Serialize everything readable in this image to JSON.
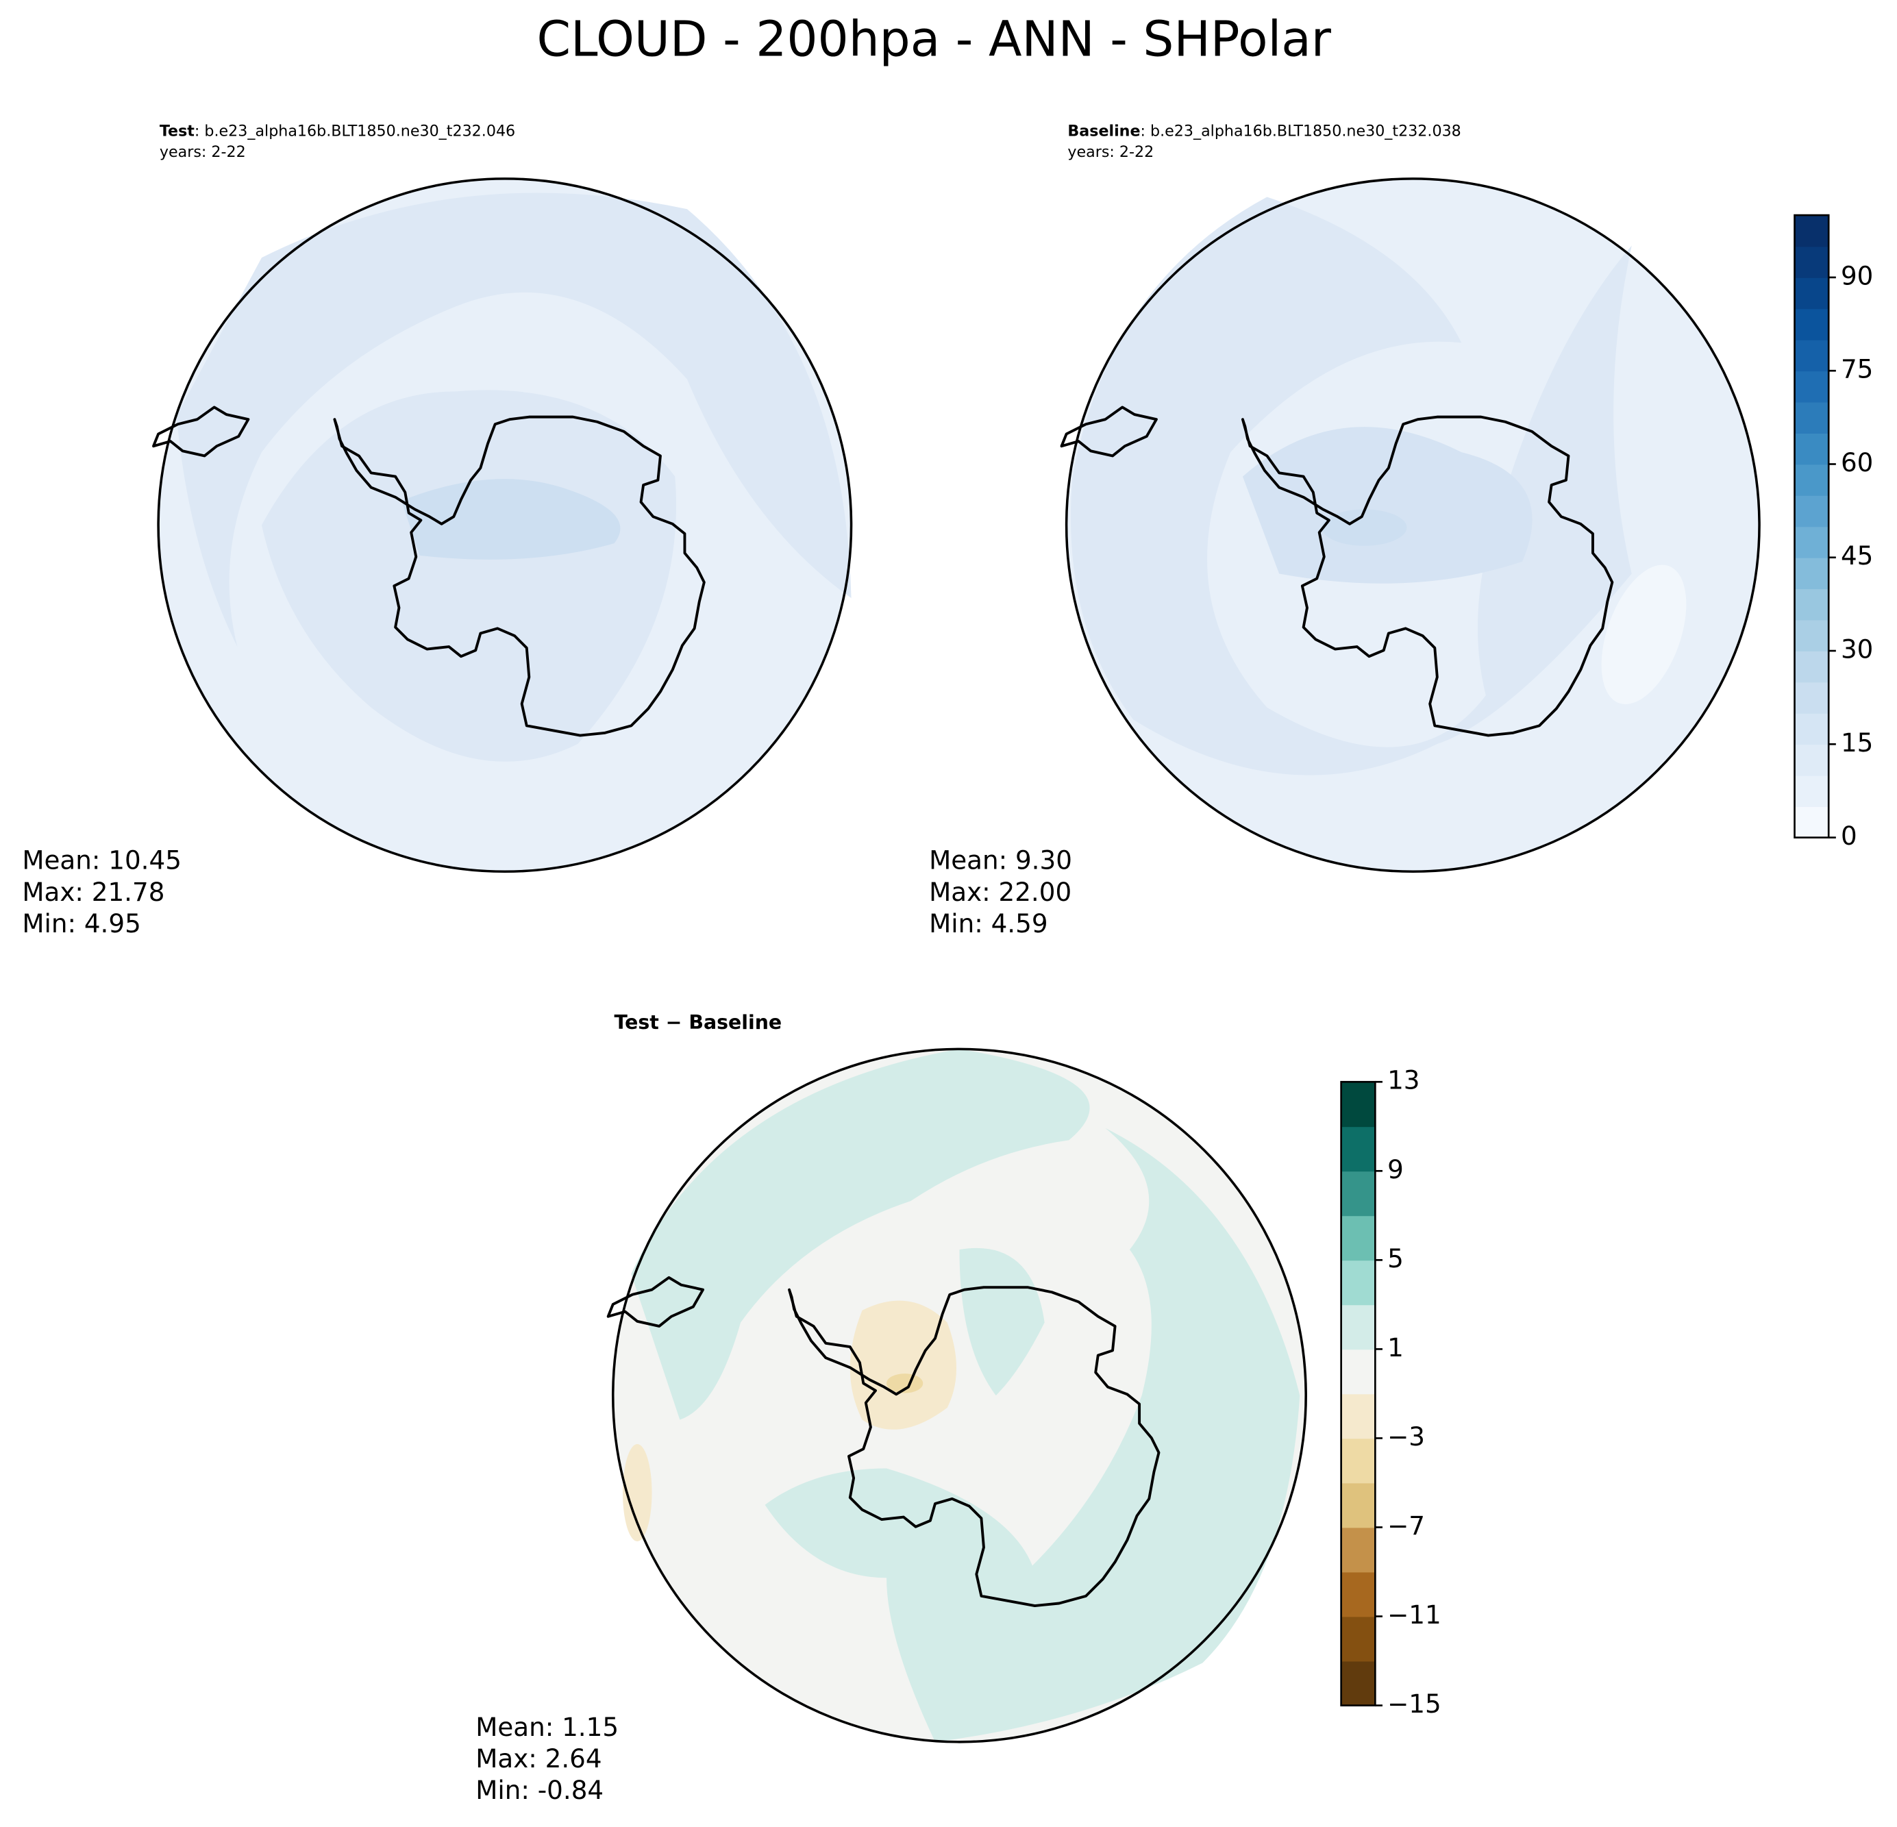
{
  "title": "CLOUD - 200hpa - ANN - SHPolar",
  "panels": [
    {
      "label": "Test",
      "case": ": b.e23_alpha16b.BLT1850.ne30_t232.046",
      "years": "years: 2-22",
      "stats": [
        "Mean: 10.45",
        "Max: 21.78",
        "Min:  4.95"
      ]
    },
    {
      "label": "Baseline",
      "case": ": b.e23_alpha16b.BLT1850.ne30_t232.038",
      "years": "years: 2-22",
      "stats": [
        "Mean:  9.30",
        "Max: 22.00",
        "Min:  4.59"
      ]
    },
    {
      "title": "Test − Baseline",
      "stats": [
        "Mean:  1.15",
        "Max:  2.64",
        "Min: -0.84"
      ]
    }
  ],
  "colorbars": [
    {
      "lim": [
        0,
        100
      ],
      "ticks": [
        0,
        15,
        30,
        45,
        60,
        75,
        90
      ],
      "colors": [
        "#f4f9fe",
        "#e8f1fa",
        "#dfebf7",
        "#d5e5f4",
        "#cadef0",
        "#bcd7eb",
        "#aacfe5",
        "#99c7e0",
        "#84bcdb",
        "#6fb0d6",
        "#5ca3d0",
        "#4a98c9",
        "#3a8bc2",
        "#2c7cba",
        "#1f6eb3",
        "#1561a9",
        "#0b549d",
        "#08468b",
        "#083a7a",
        "#08306b"
      ]
    },
    {
      "lim": [
        -15,
        13
      ],
      "ticks": [
        {
          "value": -15,
          "label": "−15"
        },
        {
          "value": -11,
          "label": "−11"
        },
        {
          "value": -7,
          "label": "−7"
        },
        {
          "value": -3,
          "label": "−3"
        },
        1,
        5,
        9,
        13
      ],
      "colors": [
        "#613b0d",
        "#845011",
        "#a7681f",
        "#c4914a",
        "#dfc27d",
        "#eedaa5",
        "#f5e9cd",
        "#f3f4f2",
        "#d3ece8",
        "#a0dbd2",
        "#6cbfb2",
        "#35948a",
        "#0d6f67",
        "#00493e"
      ]
    }
  ]
}
